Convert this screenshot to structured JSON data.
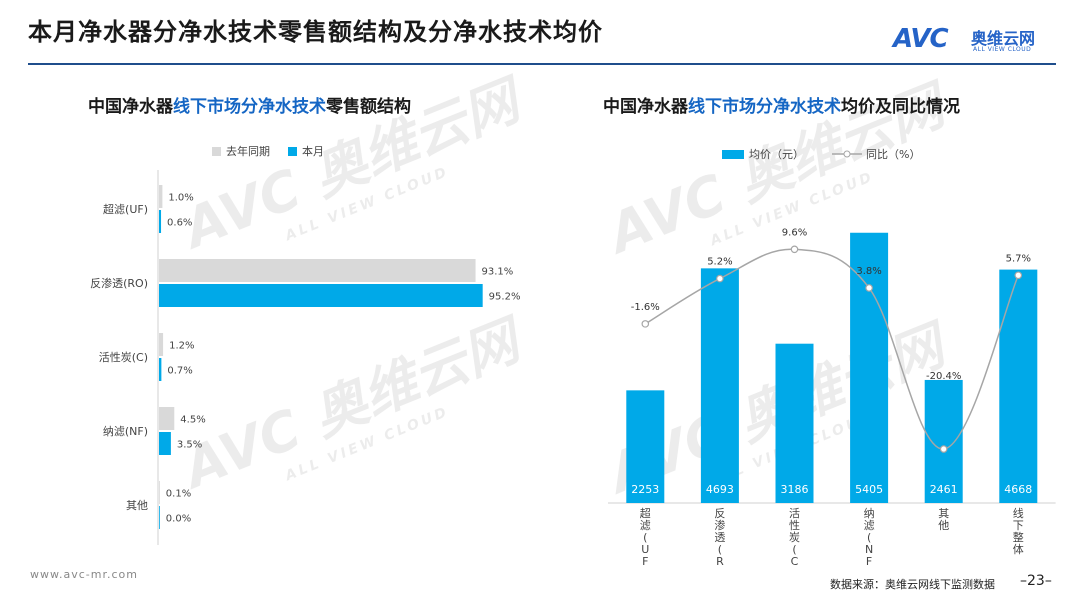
{
  "page": {
    "title": "本月净水器分净水技术零售额结构及分净水技术均价",
    "logo_mark": "AVC",
    "logo_cn": "奥维云网",
    "logo_en": "ALL VIEW CLOUD",
    "watermark_cn": "奥维云网",
    "watermark_en": "ALL VIEW CLOUD",
    "footer_url": "www.avc-mr.com",
    "footer_source": "数据来源：奥维云网线下监测数据",
    "page_number": "–23–"
  },
  "left_title": {
    "prefix": "中国净水器",
    "highlight": "线下市场分净水技术",
    "suffix": "零售额结构"
  },
  "right_title": {
    "prefix": "中国净水器",
    "highlight": "线下市场分净水技术",
    "suffix": "均价及同比情况"
  },
  "colors": {
    "this_month": "#00a9e8",
    "last_year": "#d9d9d9",
    "line": "#a6a6a6",
    "title_highlight": "#1566c4"
  },
  "chart_data": [
    {
      "type": "bar",
      "orientation": "horizontal",
      "categories": [
        "超滤(UF)",
        "反渗透(RO)",
        "活性炭(C)",
        "纳滤(NF)",
        "其他"
      ],
      "series": [
        {
          "name": "去年同期",
          "values": [
            1.0,
            93.1,
            1.2,
            4.5,
            0.1
          ],
          "labels": [
            "1.0%",
            "93.1%",
            "1.2%",
            "4.5%",
            "0.1%"
          ]
        },
        {
          "name": "本月",
          "values": [
            0.6,
            95.2,
            0.7,
            3.5,
            0.0
          ],
          "labels": [
            "0.6%",
            "95.2%",
            "0.7%",
            "3.5%",
            "0.0%"
          ]
        }
      ],
      "xlim": [
        0,
        100
      ],
      "legend": "top"
    },
    {
      "type": "bar+line",
      "categories": [
        "超滤(UF)",
        "反渗透(RO)",
        "活性炭(C)",
        "纳滤(NF)",
        "其他",
        "线下整体"
      ],
      "bar_series": {
        "name": "均价（元）",
        "values": [
          2253,
          4693,
          3186,
          5405,
          2461,
          4668
        ]
      },
      "line_series": {
        "name": "同比（%）",
        "values": [
          -1.6,
          5.2,
          9.6,
          3.8,
          -20.4,
          5.7
        ],
        "labels": [
          "-1.6%",
          "5.2%",
          "9.6%",
          "3.8%",
          "-20.4%",
          "5.7%"
        ]
      },
      "ylim_bar": [
        0,
        5800
      ],
      "ylim_line": [
        -24,
        14
      ],
      "legend": "top"
    }
  ]
}
